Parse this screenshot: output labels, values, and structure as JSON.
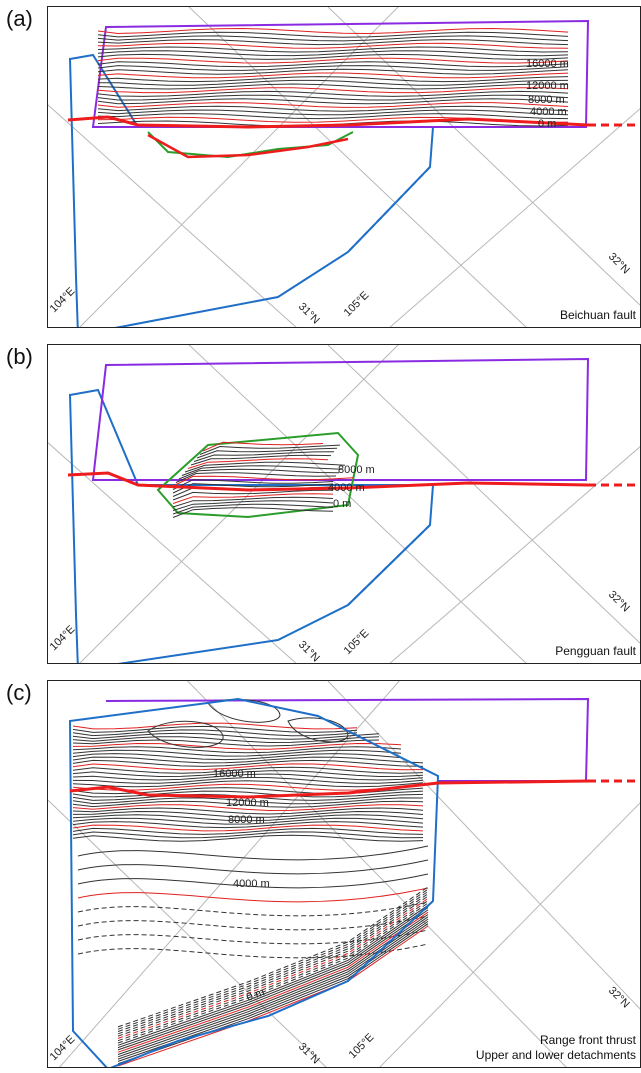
{
  "panels": [
    {
      "label": "(a)",
      "caption_lines": [
        "Beichuan fault"
      ],
      "contours": [
        "16000 m",
        "12000 m",
        "8000 m",
        "4000 m",
        "0 m"
      ]
    },
    {
      "label": "(b)",
      "caption_lines": [
        "Pengguan fault"
      ],
      "contours": [
        "8000 m",
        "4000 m",
        "0 m"
      ]
    },
    {
      "label": "(c)",
      "caption_lines": [
        "Range front thrust",
        "Upper and lower detachments"
      ],
      "contours": [
        "16000 m",
        "12000 m",
        "8000 m",
        "4000 m",
        "0 m"
      ]
    }
  ],
  "graticule": {
    "lon_1": "104°E",
    "lon_2": "105°E",
    "lat_1": "31°N",
    "lat_2": "32°N"
  },
  "colors": {
    "surface_trace": "#ee1c1c",
    "outline_upper": "#8a2be2",
    "outline_lower": "#1f6fc8",
    "rupture_patch": "#2a9d2a",
    "contour_dark": "#333333",
    "contour_red": "#e02020",
    "graticule": "#b8b8b8"
  }
}
